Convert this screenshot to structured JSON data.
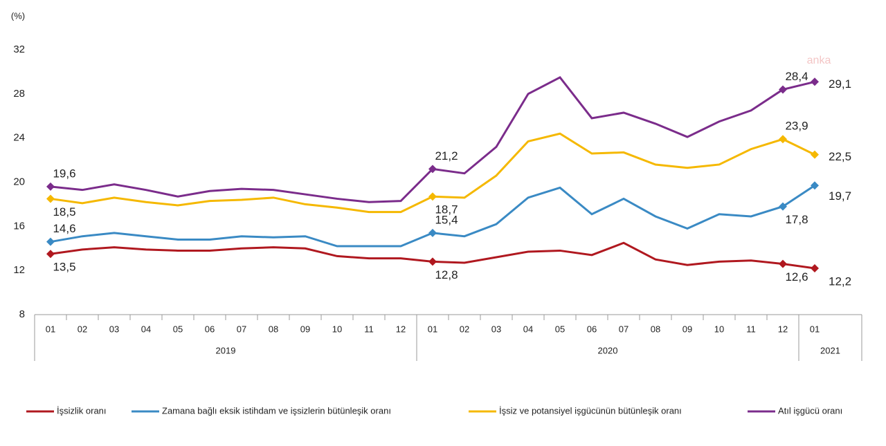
{
  "chart_data": {
    "type": "line",
    "y_axis_label": "(%)",
    "watermark": "anka",
    "categories": [
      "01",
      "02",
      "03",
      "04",
      "05",
      "06",
      "07",
      "08",
      "09",
      "10",
      "11",
      "12",
      "01",
      "02",
      "03",
      "04",
      "05",
      "06",
      "07",
      "08",
      "09",
      "10",
      "11",
      "12",
      "01"
    ],
    "groups": [
      {
        "label": "2019",
        "size": 12
      },
      {
        "label": "2020",
        "size": 12
      },
      {
        "label": "2021",
        "size": 1
      }
    ],
    "ylim": [
      8,
      32
    ],
    "yticks": [
      8,
      12,
      16,
      20,
      24,
      28,
      32
    ],
    "grid": false,
    "legend": "bottom",
    "series": [
      {
        "name": "İşsizlik oranı",
        "color": "#b0181f",
        "values": [
          13.5,
          13.9,
          14.1,
          13.9,
          13.8,
          13.8,
          14.0,
          14.1,
          14.0,
          13.3,
          13.1,
          13.1,
          12.8,
          12.7,
          13.2,
          13.7,
          13.8,
          13.4,
          14.5,
          13.0,
          12.5,
          12.8,
          12.9,
          12.6,
          12.2
        ],
        "value_labels": [
          "13,5",
          null,
          null,
          null,
          null,
          null,
          null,
          null,
          null,
          null,
          null,
          null,
          "12,8",
          null,
          null,
          null,
          null,
          null,
          null,
          null,
          null,
          null,
          null,
          "12,6",
          "12,2"
        ]
      },
      {
        "name": "Zamana bağlı eksik istihdam ve işsizlerin bütünleşik oranı",
        "color": "#3a8ac4",
        "values": [
          14.6,
          15.1,
          15.4,
          15.1,
          14.8,
          14.8,
          15.1,
          15.0,
          15.1,
          14.2,
          14.2,
          14.2,
          15.4,
          15.1,
          16.2,
          18.6,
          19.5,
          17.1,
          18.5,
          16.9,
          15.8,
          17.1,
          16.9,
          17.8,
          19.7
        ],
        "value_labels": [
          "14,6",
          null,
          null,
          null,
          null,
          null,
          null,
          null,
          null,
          null,
          null,
          null,
          "15,4",
          null,
          null,
          null,
          null,
          null,
          null,
          null,
          null,
          null,
          null,
          "17,8",
          "19,7"
        ]
      },
      {
        "name": "İşsiz ve potansiyel işgücünün bütünleşik oranı",
        "color": "#f5b800",
        "values": [
          18.5,
          18.1,
          18.6,
          18.2,
          17.9,
          18.3,
          18.4,
          18.6,
          18.0,
          17.7,
          17.3,
          17.3,
          18.7,
          18.6,
          20.6,
          23.7,
          24.4,
          22.6,
          22.7,
          21.6,
          21.3,
          21.6,
          23.0,
          23.9,
          22.5
        ],
        "value_labels": [
          "18,5",
          null,
          null,
          null,
          null,
          null,
          null,
          null,
          null,
          null,
          null,
          null,
          "18,7",
          null,
          null,
          null,
          null,
          null,
          null,
          null,
          null,
          null,
          null,
          "23,9",
          "22,5"
        ]
      },
      {
        "name": "Atıl işgücü oranı",
        "color": "#7b2c8b",
        "values": [
          19.6,
          19.3,
          19.8,
          19.3,
          18.7,
          19.2,
          19.4,
          19.3,
          18.9,
          18.5,
          18.2,
          18.3,
          21.2,
          20.8,
          23.2,
          28.0,
          29.5,
          25.8,
          26.3,
          25.3,
          24.1,
          25.5,
          26.5,
          28.4,
          29.1
        ],
        "value_labels": [
          "19,6",
          null,
          null,
          null,
          null,
          null,
          null,
          null,
          null,
          null,
          null,
          null,
          "21,2",
          null,
          null,
          null,
          null,
          null,
          null,
          null,
          null,
          null,
          null,
          "28,4",
          "29,1"
        ]
      }
    ]
  }
}
